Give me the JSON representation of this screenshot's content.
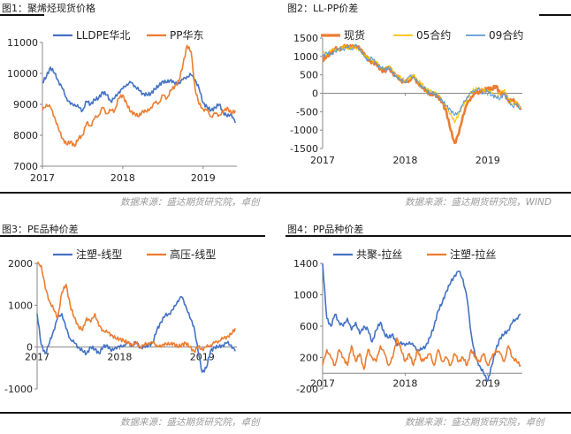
{
  "panels": [
    {
      "title": "图1：聚烯烃现货价格",
      "source": "数据来源：盛达期货研究院，卓创"
    },
    {
      "title": "图2：LL-PP价差",
      "source": "数据来源：盛达期货研究院，WIND"
    },
    {
      "title": "图3：PE品种价差",
      "source": "数据来源：盛达期货研究院，卓创"
    },
    {
      "title": "图4：PP品种价差",
      "source": "数据来源：盛达期货研究院，卓创"
    }
  ],
  "colors": {
    "blue": "#4472c4",
    "orange": "#ed7d31",
    "yellow": "#ffc000",
    "lightblue": "#5b9bd5"
  },
  "chart_data": [
    {
      "type": "line",
      "ylim": [
        7000,
        11000
      ],
      "yticks": [
        "11000",
        "10000",
        "9000",
        "8000",
        "7000"
      ],
      "xticks": [
        "2017",
        "2018",
        "2019"
      ],
      "xlim": [
        2017.0,
        2019.42
      ],
      "series": [
        {
          "name": "LLDPE华北",
          "color": "#4472c4",
          "x": [
            2017.0,
            2017.05,
            2017.1,
            2017.15,
            2017.2,
            2017.25,
            2017.3,
            2017.35,
            2017.4,
            2017.45,
            2017.5,
            2017.55,
            2017.6,
            2017.65,
            2017.7,
            2017.75,
            2017.8,
            2017.85,
            2017.9,
            2017.95,
            2018.0,
            2018.05,
            2018.1,
            2018.15,
            2018.2,
            2018.25,
            2018.3,
            2018.35,
            2018.4,
            2018.45,
            2018.5,
            2018.55,
            2018.6,
            2018.65,
            2018.7,
            2018.75,
            2018.8,
            2018.85,
            2018.9,
            2018.95,
            2019.0,
            2019.05,
            2019.1,
            2019.15,
            2019.2,
            2019.25,
            2019.3,
            2019.35,
            2019.4
          ],
          "y": [
            9700,
            9900,
            10200,
            10000,
            9750,
            9500,
            9200,
            9000,
            9000,
            8900,
            8800,
            9100,
            9000,
            9150,
            9200,
            9400,
            9300,
            9100,
            9200,
            9400,
            9500,
            9650,
            9700,
            9600,
            9450,
            9350,
            9300,
            9350,
            9500,
            9600,
            9750,
            9700,
            9800,
            9650,
            9700,
            9800,
            9900,
            9950,
            9800,
            9500,
            9050,
            8900,
            8800,
            8900,
            9000,
            8750,
            8600,
            8700,
            8400
          ]
        },
        {
          "name": "PP华东",
          "color": "#ed7d31",
          "x": [
            2017.0,
            2017.05,
            2017.1,
            2017.15,
            2017.2,
            2017.25,
            2017.3,
            2017.35,
            2017.4,
            2017.45,
            2017.5,
            2017.55,
            2017.6,
            2017.65,
            2017.7,
            2017.75,
            2017.8,
            2017.85,
            2017.9,
            2017.95,
            2018.0,
            2018.05,
            2018.1,
            2018.15,
            2018.2,
            2018.25,
            2018.3,
            2018.35,
            2018.4,
            2018.45,
            2018.5,
            2018.55,
            2018.6,
            2018.65,
            2018.7,
            2018.75,
            2018.8,
            2018.85,
            2018.9,
            2018.95,
            2019.0,
            2019.05,
            2019.1,
            2019.15,
            2019.2,
            2019.25,
            2019.3,
            2019.35,
            2019.4
          ],
          "y": [
            8800,
            9000,
            8900,
            8600,
            8200,
            7900,
            7700,
            7800,
            7650,
            7900,
            8000,
            8400,
            8300,
            8550,
            8650,
            8900,
            8700,
            8800,
            8800,
            9200,
            9300,
            9000,
            8750,
            8700,
            8600,
            8800,
            8750,
            8900,
            9050,
            9050,
            9300,
            9200,
            9450,
            9600,
            9750,
            10300,
            10900,
            10700,
            9500,
            9000,
            8850,
            8800,
            8600,
            8700,
            8650,
            8750,
            8900,
            8700,
            8800
          ]
        }
      ]
    },
    {
      "type": "line",
      "ylim": [
        -1500,
        1500
      ],
      "yticks": [
        "1500",
        "1000",
        "500",
        "0",
        "-500",
        "-1000",
        "-1500"
      ],
      "xticks": [
        "2017",
        "2018",
        "2019"
      ],
      "xlim": [
        2017.0,
        2019.42
      ],
      "series": [
        {
          "name": "现货",
          "color": "#ed7d31",
          "x": [
            2017.0,
            2017.05,
            2017.1,
            2017.15,
            2017.2,
            2017.25,
            2017.3,
            2017.35,
            2017.4,
            2017.45,
            2017.5,
            2017.55,
            2017.6,
            2017.65,
            2017.7,
            2017.75,
            2017.8,
            2017.85,
            2017.9,
            2017.95,
            2018.0,
            2018.05,
            2018.1,
            2018.15,
            2018.2,
            2018.25,
            2018.3,
            2018.35,
            2018.4,
            2018.45,
            2018.5,
            2018.55,
            2018.6,
            2018.65,
            2018.7,
            2018.75,
            2018.8,
            2018.85,
            2018.9,
            2018.95,
            2019.0,
            2019.05,
            2019.1,
            2019.15,
            2019.2,
            2019.25,
            2019.3,
            2019.35,
            2019.4
          ],
          "y": [
            900,
            1000,
            1100,
            1200,
            1200,
            1250,
            1300,
            1250,
            1300,
            1200,
            1100,
            900,
            850,
            800,
            650,
            600,
            700,
            550,
            450,
            350,
            300,
            350,
            450,
            300,
            150,
            100,
            -50,
            0,
            -100,
            -250,
            -500,
            -1000,
            -1350,
            -1100,
            -600,
            -300,
            -100,
            0,
            50,
            50,
            150,
            100,
            200,
            0,
            0,
            -200,
            -200,
            -250,
            -450
          ]
        },
        {
          "name": "05合约",
          "color": "#ffc000",
          "x": [
            2017.0,
            2017.05,
            2017.1,
            2017.15,
            2017.2,
            2017.25,
            2017.3,
            2017.35,
            2017.4,
            2017.45,
            2017.5,
            2017.55,
            2017.6,
            2017.65,
            2017.7,
            2017.75,
            2017.8,
            2017.85,
            2017.9,
            2017.95,
            2018.0,
            2018.05,
            2018.1,
            2018.15,
            2018.2,
            2018.25,
            2018.3,
            2018.35,
            2018.4,
            2018.45,
            2018.5,
            2018.55,
            2018.6,
            2018.65,
            2018.7,
            2018.75,
            2018.8,
            2018.85,
            2018.9,
            2018.95,
            2019.0,
            2019.05,
            2019.1,
            2019.15,
            2019.2,
            2019.25,
            2019.3,
            2019.35,
            2019.4
          ],
          "y": [
            1100,
            1050,
            1150,
            1200,
            1150,
            1300,
            1200,
            1250,
            1250,
            1150,
            1050,
            950,
            900,
            850,
            700,
            650,
            750,
            600,
            500,
            400,
            350,
            400,
            500,
            350,
            250,
            150,
            50,
            50,
            -50,
            -200,
            -400,
            -550,
            -800,
            -550,
            -350,
            -150,
            50,
            100,
            150,
            50,
            100,
            0,
            -100,
            0,
            100,
            -150,
            -300,
            -250,
            -400
          ]
        },
        {
          "name": "09合约",
          "color": "#5b9bd5",
          "x": [
            2017.0,
            2017.05,
            2017.1,
            2017.15,
            2017.2,
            2017.25,
            2017.3,
            2017.35,
            2017.4,
            2017.45,
            2017.5,
            2017.55,
            2017.6,
            2017.65,
            2017.7,
            2017.75,
            2017.8,
            2017.85,
            2017.9,
            2017.95,
            2018.0,
            2018.05,
            2018.1,
            2018.15,
            2018.2,
            2018.25,
            2018.3,
            2018.35,
            2018.4,
            2018.45,
            2018.5,
            2018.55,
            2018.6,
            2018.65,
            2018.7,
            2018.75,
            2018.8,
            2018.85,
            2018.9,
            2018.95,
            2019.0,
            2019.05,
            2019.1,
            2019.15,
            2019.2,
            2019.25,
            2019.3,
            2019.35,
            2019.4
          ],
          "y": [
            1000,
            1100,
            1050,
            1150,
            1200,
            1200,
            1250,
            1200,
            1300,
            1200,
            1000,
            900,
            950,
            800,
            700,
            650,
            700,
            550,
            450,
            350,
            300,
            450,
            450,
            300,
            200,
            100,
            0,
            0,
            -100,
            -200,
            -350,
            -450,
            -600,
            -500,
            -300,
            -100,
            0,
            100,
            100,
            0,
            50,
            -50,
            -100,
            -150,
            0,
            -200,
            -350,
            -300,
            -450
          ]
        }
      ]
    },
    {
      "type": "line",
      "ylim": [
        -1000,
        2000
      ],
      "yticks": [
        "2000",
        "1000",
        "0",
        "-1000"
      ],
      "xticks": [
        "2017",
        "2018",
        "2019"
      ],
      "xlim": [
        2017.0,
        2019.42
      ],
      "series": [
        {
          "name": "注塑-线型",
          "color": "#4472c4",
          "x": [
            2017.0,
            2017.05,
            2017.1,
            2017.15,
            2017.2,
            2017.25,
            2017.3,
            2017.35,
            2017.4,
            2017.45,
            2017.5,
            2017.55,
            2017.6,
            2017.65,
            2017.7,
            2017.75,
            2017.8,
            2017.85,
            2017.9,
            2017.95,
            2018.0,
            2018.05,
            2018.1,
            2018.15,
            2018.2,
            2018.25,
            2018.3,
            2018.35,
            2018.4,
            2018.45,
            2018.5,
            2018.55,
            2018.6,
            2018.65,
            2018.7,
            2018.75,
            2018.8,
            2018.85,
            2018.9,
            2018.95,
            2019.0,
            2019.05,
            2019.1,
            2019.15,
            2019.2,
            2019.25,
            2019.3,
            2019.35,
            2019.4
          ],
          "y": [
            800,
            50,
            -150,
            100,
            400,
            700,
            800,
            450,
            200,
            100,
            0,
            -100,
            -150,
            0,
            -50,
            -150,
            0,
            50,
            -100,
            0,
            0,
            50,
            100,
            50,
            100,
            0,
            0,
            50,
            100,
            400,
            600,
            750,
            800,
            900,
            1100,
            1200,
            1000,
            700,
            500,
            -100,
            -600,
            -500,
            -100,
            0,
            0,
            50,
            100,
            50,
            -100
          ]
        },
        {
          "name": "高压-线型",
          "color": "#ed7d31",
          "x": [
            2017.0,
            2017.05,
            2017.1,
            2017.15,
            2017.2,
            2017.25,
            2017.3,
            2017.35,
            2017.4,
            2017.45,
            2017.5,
            2017.55,
            2017.6,
            2017.65,
            2017.7,
            2017.75,
            2017.8,
            2017.85,
            2017.9,
            2017.95,
            2018.0,
            2018.05,
            2018.1,
            2018.15,
            2018.2,
            2018.25,
            2018.3,
            2018.35,
            2018.4,
            2018.45,
            2018.5,
            2018.55,
            2018.6,
            2018.65,
            2018.7,
            2018.75,
            2018.8,
            2018.85,
            2018.9,
            2018.95,
            2019.0,
            2019.05,
            2019.1,
            2019.15,
            2019.2,
            2019.25,
            2019.3,
            2019.35,
            2019.4
          ],
          "y": [
            2000,
            1950,
            1400,
            1100,
            900,
            700,
            1300,
            1500,
            1000,
            700,
            500,
            400,
            700,
            600,
            800,
            500,
            400,
            350,
            300,
            200,
            200,
            150,
            100,
            50,
            100,
            0,
            50,
            100,
            100,
            50,
            0,
            100,
            50,
            100,
            0,
            50,
            100,
            0,
            -100,
            0,
            -50,
            0,
            50,
            100,
            150,
            200,
            250,
            300,
            450
          ]
        }
      ]
    },
    {
      "type": "line",
      "ylim": [
        -200,
        1400
      ],
      "yticks": [
        "1400",
        "1000",
        "600",
        "200",
        "-200"
      ],
      "xticks": [
        "2017",
        "2018",
        "2019"
      ],
      "xlim": [
        2017.0,
        2019.42
      ],
      "series": [
        {
          "name": "共聚-拉丝",
          "color": "#4472c4",
          "x": [
            2017.0,
            2017.05,
            2017.1,
            2017.15,
            2017.2,
            2017.25,
            2017.3,
            2017.35,
            2017.4,
            2017.45,
            2017.5,
            2017.55,
            2017.6,
            2017.65,
            2017.7,
            2017.75,
            2017.8,
            2017.85,
            2017.9,
            2017.95,
            2018.0,
            2018.05,
            2018.1,
            2018.15,
            2018.2,
            2018.25,
            2018.3,
            2018.35,
            2018.4,
            2018.45,
            2018.5,
            2018.55,
            2018.6,
            2018.65,
            2018.7,
            2018.75,
            2018.8,
            2018.85,
            2018.9,
            2018.95,
            2019.0,
            2019.05,
            2019.1,
            2019.15,
            2019.2,
            2019.25,
            2019.3,
            2019.35,
            2019.4
          ],
          "y": [
            1400,
            700,
            600,
            750,
            650,
            600,
            700,
            550,
            650,
            500,
            600,
            550,
            400,
            550,
            650,
            500,
            450,
            500,
            350,
            400,
            350,
            400,
            350,
            300,
            300,
            350,
            450,
            600,
            800,
            900,
            1050,
            1150,
            1250,
            1300,
            1200,
            950,
            500,
            200,
            100,
            0,
            -100,
            100,
            300,
            450,
            500,
            550,
            650,
            700,
            750
          ]
        },
        {
          "name": "注塑-拉丝",
          "color": "#ed7d31",
          "x": [
            2017.0,
            2017.05,
            2017.1,
            2017.15,
            2017.2,
            2017.25,
            2017.3,
            2017.35,
            2017.4,
            2017.45,
            2017.5,
            2017.55,
            2017.6,
            2017.65,
            2017.7,
            2017.75,
            2017.8,
            2017.85,
            2017.9,
            2017.95,
            2018.0,
            2018.05,
            2018.1,
            2018.15,
            2018.2,
            2018.25,
            2018.3,
            2018.35,
            2018.4,
            2018.45,
            2018.5,
            2018.55,
            2018.6,
            2018.65,
            2018.7,
            2018.75,
            2018.8,
            2018.85,
            2018.9,
            2018.95,
            2019.0,
            2019.05,
            2019.1,
            2019.15,
            2019.2,
            2019.25,
            2019.3,
            2019.35,
            2019.4
          ],
          "y": [
            100,
            300,
            200,
            100,
            300,
            200,
            100,
            350,
            150,
            250,
            50,
            300,
            200,
            150,
            350,
            250,
            100,
            200,
            450,
            300,
            150,
            250,
            100,
            300,
            150,
            200,
            250,
            100,
            300,
            150,
            200,
            100,
            250,
            150,
            200,
            100,
            300,
            200,
            150,
            250,
            100,
            200,
            300,
            250,
            150,
            350,
            200,
            150,
            100
          ]
        }
      ]
    }
  ]
}
